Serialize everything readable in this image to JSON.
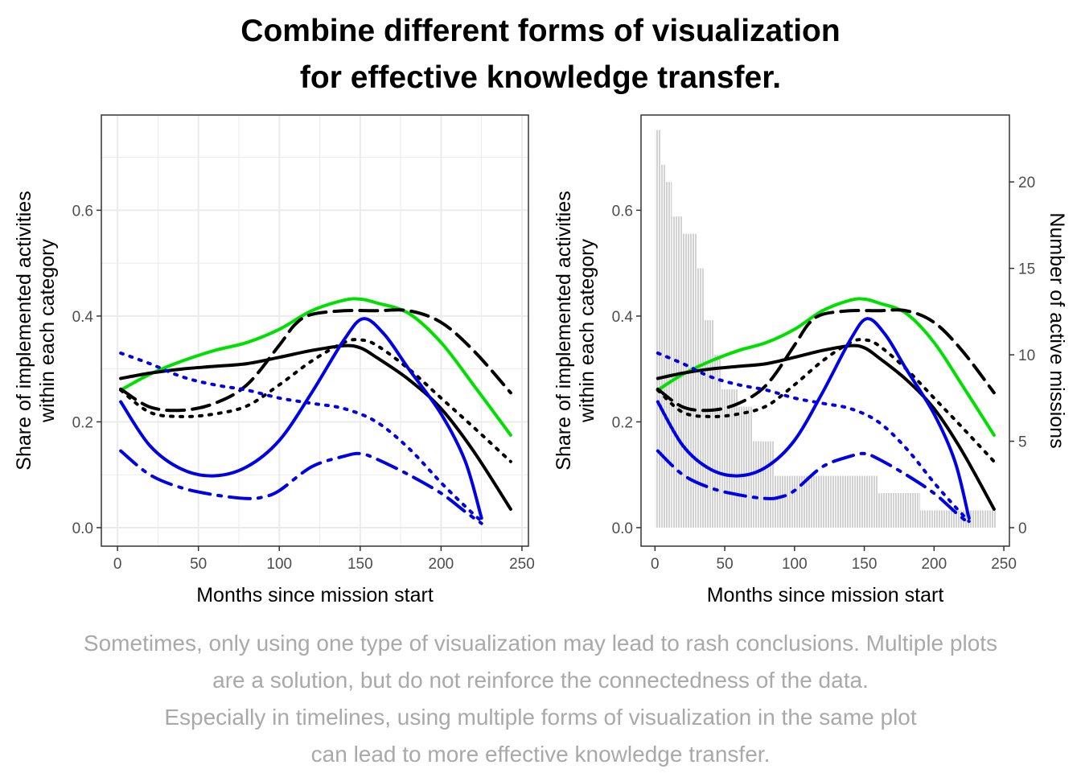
{
  "title_lines": [
    "Combine different forms of visualization",
    "for effective knowledge transfer."
  ],
  "caption_lines": [
    "Sometimes, only using one type of visualization may lead to rash conclusions. Multiple plots",
    "are a solution, but do not reinforce the connectedness of the data.",
    "Especially in timelines, using multiple forms of visualization in the same plot",
    "can lead to more effective knowledge transfer."
  ],
  "colors": {
    "green": "#00e000",
    "black": "#000000",
    "blue": "#0000e6",
    "bars": "#a6a6a6",
    "grid": "#ebebeb",
    "caption": "#a9a9a9"
  },
  "chart_data": [
    {
      "type": "line",
      "xlabel": "Months since mission start",
      "ylabel_lines": [
        "Share of implemented activities",
        "within each category"
      ],
      "xlim": [
        -10,
        254
      ],
      "ylim": [
        -0.035,
        0.78
      ],
      "xticks": [
        0,
        50,
        100,
        150,
        200,
        250
      ],
      "yticks": [
        0.0,
        0.2,
        0.4,
        0.6
      ],
      "ytick_labels": [
        "0.0",
        "0.2",
        "0.4",
        "0.6"
      ],
      "grid": true,
      "series": [
        {
          "color": "green",
          "dash": "solid",
          "x": [
            2,
            20,
            40,
            60,
            80,
            100,
            120,
            140,
            150,
            160,
            180,
            200,
            220,
            243
          ],
          "y": [
            0.26,
            0.29,
            0.315,
            0.335,
            0.35,
            0.375,
            0.41,
            0.43,
            0.432,
            0.425,
            0.405,
            0.35,
            0.27,
            0.175
          ]
        },
        {
          "color": "black",
          "dash": "solid",
          "x": [
            2,
            20,
            40,
            60,
            80,
            100,
            120,
            140,
            150,
            160,
            180,
            200,
            220,
            243
          ],
          "y": [
            0.282,
            0.292,
            0.3,
            0.305,
            0.31,
            0.322,
            0.335,
            0.344,
            0.34,
            0.322,
            0.28,
            0.225,
            0.145,
            0.035
          ]
        },
        {
          "color": "black",
          "dash": "dashed",
          "x": [
            2,
            20,
            40,
            60,
            80,
            100,
            110,
            120,
            140,
            160,
            180,
            200,
            220,
            243
          ],
          "y": [
            0.262,
            0.228,
            0.222,
            0.235,
            0.27,
            0.345,
            0.385,
            0.403,
            0.41,
            0.41,
            0.41,
            0.388,
            0.335,
            0.255
          ]
        },
        {
          "color": "black",
          "dash": "dotted",
          "x": [
            2,
            20,
            40,
            60,
            80,
            100,
            120,
            140,
            150,
            160,
            180,
            200,
            220,
            243
          ],
          "y": [
            0.26,
            0.218,
            0.21,
            0.215,
            0.23,
            0.27,
            0.315,
            0.35,
            0.355,
            0.345,
            0.3,
            0.245,
            0.19,
            0.125
          ]
        },
        {
          "color": "blue",
          "dash": "solid",
          "x": [
            2,
            20,
            40,
            60,
            80,
            100,
            120,
            140,
            152,
            165,
            180,
            200,
            215,
            225
          ],
          "y": [
            0.238,
            0.155,
            0.11,
            0.098,
            0.115,
            0.165,
            0.255,
            0.355,
            0.395,
            0.365,
            0.3,
            0.215,
            0.125,
            0.018
          ]
        },
        {
          "color": "blue",
          "dash": "dotted",
          "x": [
            2,
            20,
            40,
            60,
            80,
            100,
            120,
            140,
            160,
            180,
            200,
            215,
            225
          ],
          "y": [
            0.33,
            0.31,
            0.285,
            0.27,
            0.26,
            0.245,
            0.235,
            0.225,
            0.2,
            0.15,
            0.085,
            0.04,
            0.012
          ]
        },
        {
          "color": "blue",
          "dash": "dashdot",
          "x": [
            2,
            20,
            40,
            60,
            80,
            90,
            100,
            120,
            140,
            150,
            160,
            180,
            200,
            215,
            225
          ],
          "y": [
            0.145,
            0.1,
            0.075,
            0.062,
            0.055,
            0.058,
            0.07,
            0.115,
            0.135,
            0.14,
            0.13,
            0.1,
            0.065,
            0.03,
            0.008
          ]
        }
      ]
    },
    {
      "type": "line",
      "xlabel": "Months since mission start",
      "ylabel_lines": [
        "Share of implemented activities",
        "within each category"
      ],
      "y2label": "Number of active missions",
      "xlim": [
        -10,
        254
      ],
      "ylim": [
        -0.035,
        0.78
      ],
      "y2lim": [
        -1.07,
        23.87
      ],
      "xticks": [
        0,
        50,
        100,
        150,
        200,
        250
      ],
      "yticks": [
        0.0,
        0.2,
        0.4,
        0.6
      ],
      "ytick_labels": [
        "0.0",
        "0.2",
        "0.4",
        "0.6"
      ],
      "y2ticks": [
        0,
        5,
        10,
        15,
        20
      ],
      "grid": false,
      "bars": {
        "color": "bars",
        "steps": [
          {
            "x0": 0,
            "x1": 4,
            "value": 23
          },
          {
            "x0": 4,
            "x1": 8,
            "value": 21
          },
          {
            "x0": 8,
            "x1": 12,
            "value": 20
          },
          {
            "x0": 12,
            "x1": 20,
            "value": 18
          },
          {
            "x0": 20,
            "x1": 30,
            "value": 17
          },
          {
            "x0": 30,
            "x1": 35,
            "value": 15
          },
          {
            "x0": 35,
            "x1": 42,
            "value": 12
          },
          {
            "x0": 42,
            "x1": 48,
            "value": 10
          },
          {
            "x0": 48,
            "x1": 60,
            "value": 8
          },
          {
            "x0": 60,
            "x1": 70,
            "value": 7
          },
          {
            "x0": 70,
            "x1": 85,
            "value": 5
          },
          {
            "x0": 85,
            "x1": 110,
            "value": 3
          },
          {
            "x0": 110,
            "x1": 160,
            "value": 3
          },
          {
            "x0": 160,
            "x1": 190,
            "value": 2
          },
          {
            "x0": 190,
            "x1": 245,
            "value": 1
          }
        ]
      },
      "series_ref": 0
    }
  ]
}
